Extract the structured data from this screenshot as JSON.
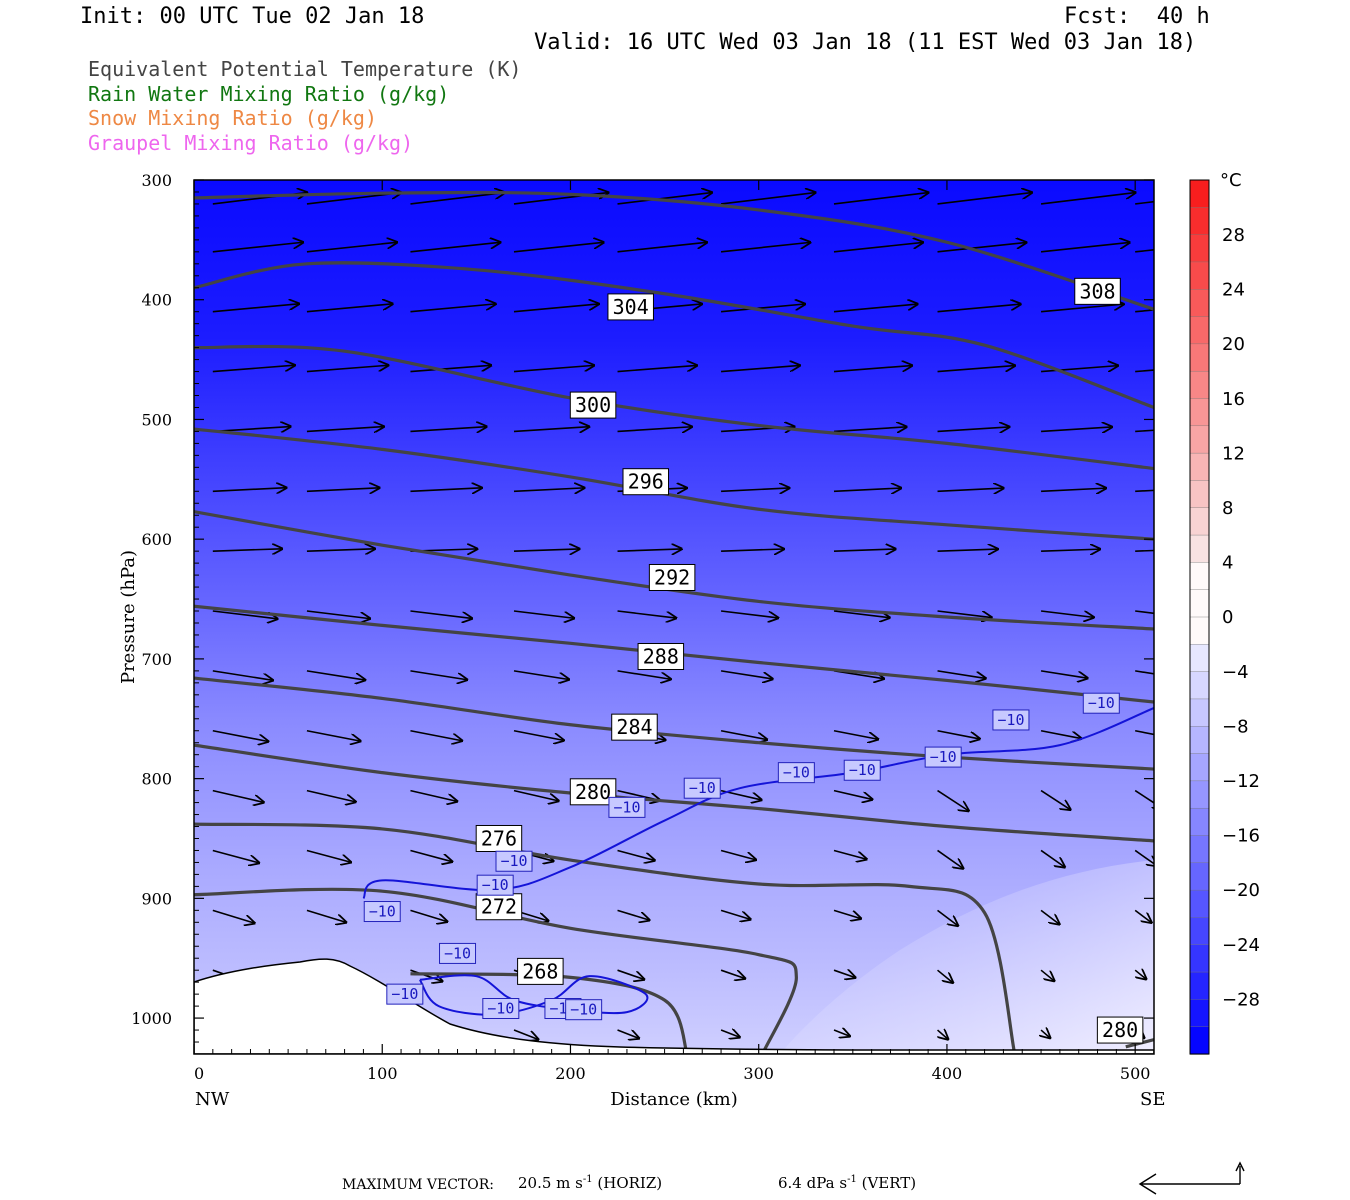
{
  "header": {
    "init": "Init: 00 UTC Tue 02 Jan 18",
    "fcst": "Fcst:  40 h",
    "valid": "Valid: 16 UTC Wed 03 Jan 18 (11 EST Wed 03 Jan 18)"
  },
  "legend": [
    {
      "text": "Equivalent Potential Temperature (K)",
      "color": "#444444"
    },
    {
      "text": "Rain Water Mixing Ratio (g/kg)",
      "color": "#117711"
    },
    {
      "text": "Snow Mixing Ratio (g/kg)",
      "color": "#ee8844"
    },
    {
      "text": "Graupel Mixing Ratio (g/kg)",
      "color": "#ee66ee"
    }
  ],
  "chart_data": {
    "type": "cross-section",
    "xlabel": "Distance (km)",
    "ylabel": "Pressure (hPa)",
    "xlim": [
      0,
      510
    ],
    "ylim": [
      1030,
      300
    ],
    "x_ticks": [
      0,
      100,
      200,
      300,
      400,
      500
    ],
    "y_ticks": [
      300,
      400,
      500,
      600,
      700,
      800,
      900,
      1000
    ],
    "x_end_labels": {
      "left": "NW",
      "right": "SE"
    },
    "theta_e_contours": [
      {
        "level": 308,
        "label": "308",
        "points": [
          [
            0,
            315
          ],
          [
            100,
            311
          ],
          [
            200,
            312
          ],
          [
            300,
            325
          ],
          [
            400,
            352
          ],
          [
            510,
            408
          ]
        ],
        "label_at": [
          480,
          393
        ]
      },
      {
        "level": 304,
        "label": "304",
        "points": [
          [
            0,
            390
          ],
          [
            60,
            370
          ],
          [
            150,
            375
          ],
          [
            250,
            395
          ],
          [
            350,
            422
          ],
          [
            420,
            438
          ],
          [
            510,
            490
          ]
        ],
        "label_at": [
          232,
          406
        ]
      },
      {
        "level": 300,
        "label": "300",
        "points": [
          [
            0,
            440
          ],
          [
            80,
            443
          ],
          [
            200,
            482
          ],
          [
            300,
            505
          ],
          [
            400,
            520
          ],
          [
            510,
            541
          ]
        ],
        "label_at": [
          212,
          488
        ]
      },
      {
        "level": 296,
        "label": "296",
        "points": [
          [
            0,
            508
          ],
          [
            100,
            525
          ],
          [
            200,
            548
          ],
          [
            300,
            575
          ],
          [
            400,
            588
          ],
          [
            510,
            600
          ]
        ],
        "label_at": [
          240,
          552
        ]
      },
      {
        "level": 292,
        "label": "292",
        "points": [
          [
            0,
            577
          ],
          [
            100,
            605
          ],
          [
            200,
            630
          ],
          [
            300,
            652
          ],
          [
            400,
            665
          ],
          [
            510,
            675
          ]
        ],
        "label_at": [
          254,
          632
        ]
      },
      {
        "level": 288,
        "label": "288",
        "points": [
          [
            0,
            656
          ],
          [
            100,
            672
          ],
          [
            200,
            687
          ],
          [
            300,
            703
          ],
          [
            400,
            718
          ],
          [
            510,
            736
          ]
        ],
        "label_at": [
          248,
          698
        ]
      },
      {
        "level": 284,
        "label": "284",
        "points": [
          [
            0,
            716
          ],
          [
            100,
            733
          ],
          [
            200,
            755
          ],
          [
            300,
            770
          ],
          [
            400,
            782
          ],
          [
            510,
            792
          ]
        ],
        "label_at": [
          234,
          757
        ]
      },
      {
        "level": 280,
        "label": "280",
        "points": [
          [
            0,
            772
          ],
          [
            100,
            795
          ],
          [
            200,
            812
          ],
          [
            300,
            825
          ],
          [
            400,
            840
          ],
          [
            510,
            852
          ]
        ],
        "label_at": [
          212,
          811
        ]
      },
      {
        "level": 276,
        "label": "276",
        "points": [
          [
            0,
            838
          ],
          [
            100,
            842
          ],
          [
            200,
            868
          ],
          [
            300,
            888
          ],
          [
            380,
            890
          ],
          [
            420,
            912
          ],
          [
            436,
            1030
          ]
        ],
        "label_at": [
          162,
          850
        ]
      },
      {
        "level": 272,
        "label": "272",
        "points": [
          [
            0,
            897
          ],
          [
            100,
            894
          ],
          [
            200,
            925
          ],
          [
            300,
            947
          ],
          [
            320,
            966
          ],
          [
            302,
            1030
          ]
        ],
        "label_at": [
          162,
          907
        ]
      },
      {
        "level": 268,
        "label": "268",
        "points": [
          [
            115,
            963
          ],
          [
            200,
            966
          ],
          [
            250,
            985
          ],
          [
            262,
            1030
          ]
        ],
        "label_at": [
          184,
          961
        ]
      },
      {
        "level": 280,
        "label": "280",
        "points": [
          [
            495,
            1024
          ],
          [
            510,
            1018
          ]
        ],
        "label_at": [
          492,
          1010
        ]
      }
    ],
    "temperature_contours": [
      {
        "level": -10,
        "label": "-10",
        "points": [
          [
            90,
            900
          ],
          [
            100,
            885
          ],
          [
            160,
            893
          ],
          [
            200,
            874
          ],
          [
            250,
            835
          ],
          [
            290,
            808
          ],
          [
            350,
            795
          ],
          [
            400,
            780
          ],
          [
            460,
            772
          ],
          [
            510,
            741
          ]
        ],
        "label_at": [
          [
            160,
            889
          ],
          [
            170,
            869
          ],
          [
            230,
            824
          ],
          [
            270,
            808
          ],
          [
            320,
            795
          ],
          [
            355,
            793
          ],
          [
            398,
            782
          ],
          [
            434,
            751
          ],
          [
            482,
            737
          ]
        ]
      },
      {
        "level": -10,
        "label": "-10",
        "points": [
          [
            120,
            968
          ],
          [
            130,
            990
          ],
          [
            160,
            997
          ],
          [
            190,
            985
          ],
          [
            210,
            965
          ],
          [
            240,
            980
          ],
          [
            230,
            995
          ],
          [
            200,
            993
          ],
          [
            170,
            985
          ],
          [
            150,
            965
          ],
          [
            120,
            968
          ]
        ],
        "label_at": [
          [
            100,
            911
          ],
          [
            140,
            946
          ],
          [
            196,
            992
          ],
          [
            112,
            980
          ],
          [
            163,
            992
          ],
          [
            207,
            993
          ]
        ]
      }
    ],
    "colorbar": {
      "unit": "°C",
      "levels": [
        28,
        24,
        20,
        16,
        12,
        8,
        4,
        0,
        -4,
        -8,
        -12,
        -16,
        -20,
        -24,
        -28
      ]
    },
    "temperature_field_levels": [
      -30,
      -28,
      -26,
      -24,
      -22,
      -20,
      -18,
      -16,
      -14,
      -12,
      -10,
      -8,
      -6,
      -4,
      -2
    ],
    "max_vector_horiz": "20.5 m s",
    "max_vector_vert": "6.4 dPa s"
  },
  "footer": {
    "label": "MAXIMUM VECTOR:",
    "horiz_value": "20.5 m s",
    "horiz_unit": "(HORIZ)",
    "vert_value": "6.4 dPa s",
    "vert_unit": "(VERT)",
    "exp": "-1"
  }
}
